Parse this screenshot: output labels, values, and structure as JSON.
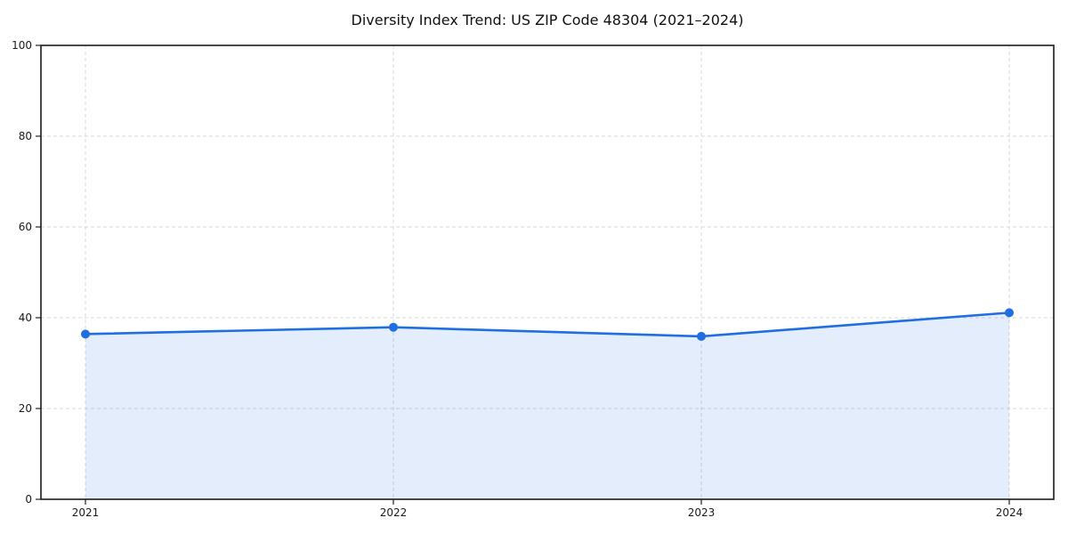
{
  "chart_data": {
    "type": "area",
    "title": "Diversity Index Trend: US ZIP Code 48304 (2021–2024)",
    "categories": [
      "2021",
      "2022",
      "2023",
      "2024"
    ],
    "series": [
      {
        "name": "Diversity Index",
        "values": [
          36.4,
          37.9,
          35.9,
          41.1
        ]
      }
    ],
    "xlabel": "",
    "ylabel": "",
    "ylim": [
      0,
      100
    ],
    "yticks": [
      0,
      20,
      40,
      60,
      80,
      100
    ],
    "grid": "dashed-both",
    "legend": "none",
    "marker": "circle",
    "colors": {
      "line": "#1f6fe0",
      "marker": "#1f6fe0",
      "fill": "rgba(31,111,224,0.12)",
      "grid": "#dadada",
      "spine": "#1a1a1a",
      "tick": "#222222",
      "tick_label": "#1a1a1a",
      "title": "#111111",
      "background": "#ffffff"
    }
  }
}
